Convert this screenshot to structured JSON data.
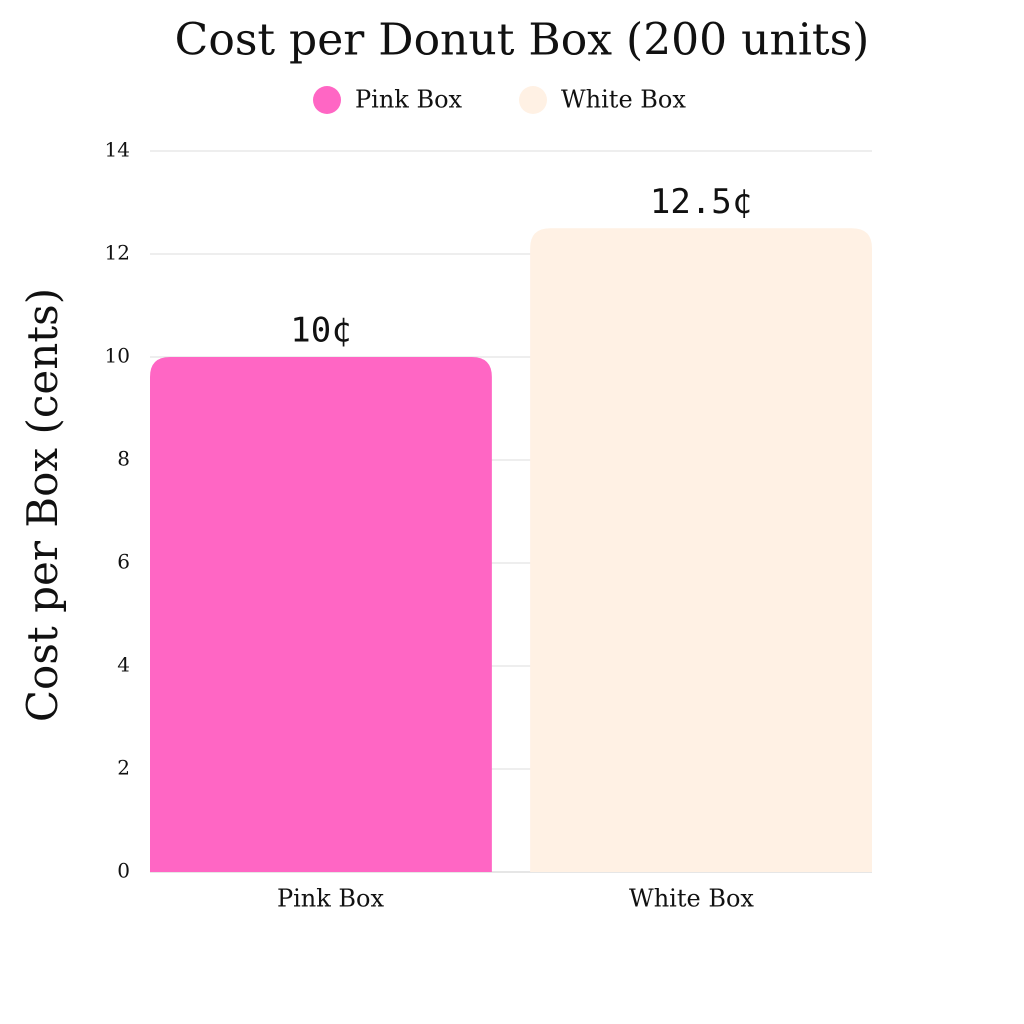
{
  "chart_data": {
    "type": "bar",
    "title": "Cost per Donut Box (200 units)",
    "y_label": "Cost per Box (cents)",
    "categories": [
      "Pink Box",
      "White Box"
    ],
    "series": [
      {
        "name": "Pink Box",
        "color": "#ff66c4",
        "values": [
          10,
          null
        ],
        "value_labels": [
          "10¢",
          null
        ]
      },
      {
        "name": "White Box",
        "color": "#fff1e4",
        "values": [
          null,
          12.5
        ],
        "value_labels": [
          null,
          "12.5¢"
        ]
      }
    ],
    "ylim": [
      0,
      14
    ],
    "yticks": [
      0,
      2,
      4,
      6,
      8,
      10,
      12,
      14
    ],
    "grid": true
  }
}
